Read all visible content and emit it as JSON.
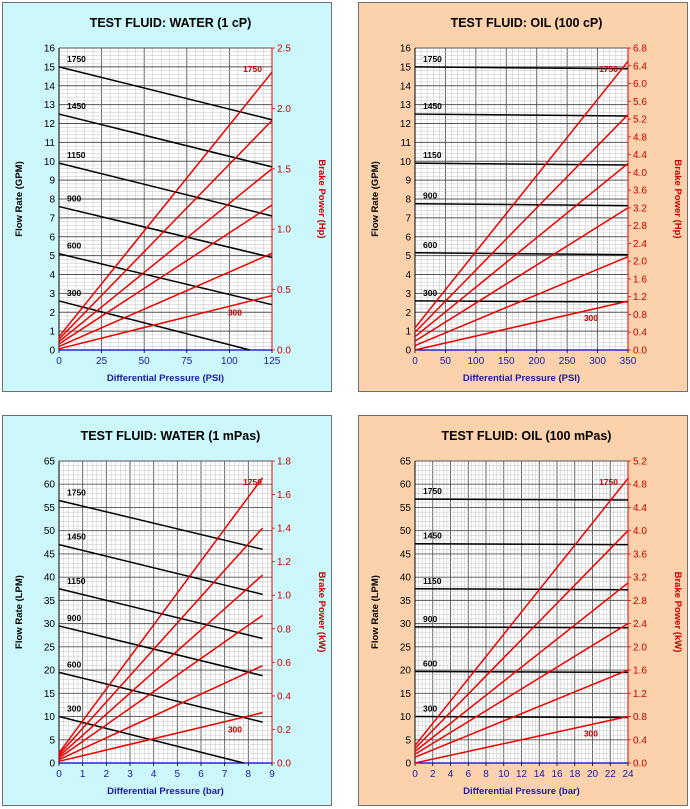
{
  "colors": {
    "water_bg": "#ccf7fb",
    "oil_bg": "#fbd2ac",
    "flow_line": "#000000",
    "power_line": "#ee0000",
    "x_axis_text": "#1a1aa8",
    "power_axis_text": "#cc0000",
    "grid_minor": "#c0c0c0",
    "grid_major": "#555555"
  },
  "chart_data": [
    {
      "type": "line",
      "title": "TEST FLUID:  WATER (1 cP)",
      "background": "water",
      "xlabel": "Differential Pressure (PSI)",
      "ylabel": "Flow Rate (GPM)",
      "y2label": "Brake Power (Hp)",
      "xlim": [
        0,
        125
      ],
      "ylim": [
        0,
        16
      ],
      "y2lim": [
        0,
        2.5
      ],
      "xticks": [
        "0",
        "25",
        "50",
        "75",
        "100",
        "125"
      ],
      "yticks": [
        "0",
        "1",
        "2",
        "3",
        "4",
        "5",
        "6",
        "7",
        "8",
        "9",
        "10",
        "11",
        "12",
        "13",
        "14",
        "15",
        "16"
      ],
      "y2ticks": [
        "0.0",
        "0.5",
        "1.0",
        "1.5",
        "2.0",
        "2.5"
      ],
      "grid": true,
      "rpm_labels": [
        "300",
        "600",
        "900",
        "1150",
        "1450",
        "1750"
      ],
      "power_rpm_labels": {
        "low": "300",
        "high": "1750"
      },
      "flow_series": [
        {
          "name": "300",
          "x": [
            0,
            112
          ],
          "y": [
            2.6,
            0
          ]
        },
        {
          "name": "600",
          "x": [
            0,
            125
          ],
          "y": [
            5.1,
            2.4
          ]
        },
        {
          "name": "900",
          "x": [
            0,
            125
          ],
          "y": [
            7.6,
            4.9
          ]
        },
        {
          "name": "1150",
          "x": [
            0,
            125
          ],
          "y": [
            9.9,
            7.1
          ]
        },
        {
          "name": "1450",
          "x": [
            0,
            125
          ],
          "y": [
            12.5,
            9.7
          ]
        },
        {
          "name": "1750",
          "x": [
            0,
            125
          ],
          "y": [
            15.0,
            12.2
          ]
        }
      ],
      "power_series": [
        {
          "name": "300",
          "x": [
            0,
            125
          ],
          "y": [
            0.01,
            0.45
          ]
        },
        {
          "name": "600",
          "x": [
            0,
            125
          ],
          "y": [
            0.03,
            0.8
          ]
        },
        {
          "name": "900",
          "x": [
            0,
            125
          ],
          "y": [
            0.05,
            1.2
          ]
        },
        {
          "name": "1150",
          "x": [
            0,
            125
          ],
          "y": [
            0.07,
            1.5
          ]
        },
        {
          "name": "1450",
          "x": [
            0,
            125
          ],
          "y": [
            0.09,
            1.9
          ]
        },
        {
          "name": "1750",
          "x": [
            0,
            125
          ],
          "y": [
            0.11,
            2.3
          ]
        }
      ]
    },
    {
      "type": "line",
      "title": "TEST FLUID:  OIL (100 cP)",
      "background": "oil",
      "xlabel": "Differential Pressure (PSI)",
      "ylabel": "Flow Rate (GPM)",
      "y2label": "Brake Power (Hp)",
      "xlim": [
        0,
        350
      ],
      "ylim": [
        0,
        16
      ],
      "y2lim": [
        0,
        6.8
      ],
      "xticks": [
        "0",
        "50",
        "100",
        "150",
        "200",
        "250",
        "300",
        "350"
      ],
      "yticks": [
        "0",
        "1",
        "2",
        "3",
        "4",
        "5",
        "6",
        "7",
        "8",
        "9",
        "10",
        "11",
        "12",
        "13",
        "14",
        "15",
        "16"
      ],
      "y2ticks": [
        "0.0",
        "0.4",
        "0.8",
        "1.2",
        "1.6",
        "2.0",
        "2.4",
        "2.8",
        "3.2",
        "3.6",
        "4.0",
        "4.4",
        "4.8",
        "5.2",
        "5.6",
        "6.0",
        "6.4",
        "6.8"
      ],
      "grid": true,
      "rpm_labels": [
        "300",
        "600",
        "900",
        "1150",
        "1450",
        "1750"
      ],
      "power_rpm_labels": {
        "low": "300",
        "high": "1750"
      },
      "flow_series": [
        {
          "name": "300",
          "x": [
            0,
            350
          ],
          "y": [
            2.6,
            2.55
          ]
        },
        {
          "name": "600",
          "x": [
            0,
            350
          ],
          "y": [
            5.15,
            5.05
          ]
        },
        {
          "name": "900",
          "x": [
            0,
            350
          ],
          "y": [
            7.75,
            7.65
          ]
        },
        {
          "name": "1150",
          "x": [
            0,
            350
          ],
          "y": [
            9.9,
            9.8
          ]
        },
        {
          "name": "1450",
          "x": [
            0,
            350
          ],
          "y": [
            12.5,
            12.4
          ]
        },
        {
          "name": "1750",
          "x": [
            0,
            350
          ],
          "y": [
            15.0,
            14.9
          ]
        }
      ],
      "power_series": [
        {
          "name": "300",
          "x": [
            0,
            350
          ],
          "y": [
            0.0,
            1.1
          ]
        },
        {
          "name": "600",
          "x": [
            0,
            350
          ],
          "y": [
            0.1,
            2.1
          ]
        },
        {
          "name": "900",
          "x": [
            0,
            350
          ],
          "y": [
            0.2,
            3.2
          ]
        },
        {
          "name": "1150",
          "x": [
            0,
            350
          ],
          "y": [
            0.3,
            4.2
          ]
        },
        {
          "name": "1450",
          "x": [
            0,
            350
          ],
          "y": [
            0.4,
            5.3
          ]
        },
        {
          "name": "1750",
          "x": [
            0,
            350
          ],
          "y": [
            0.5,
            6.5
          ]
        }
      ]
    },
    {
      "type": "line",
      "title": "TEST FLUID:  WATER (1 mPas)",
      "background": "water",
      "xlabel": "Differential Pressure (bar)",
      "ylabel": "Flow Rate (LPM)",
      "y2label": "Brake Power (kW)",
      "xlim": [
        0,
        9
      ],
      "ylim": [
        0,
        65
      ],
      "y2lim": [
        0,
        1.8
      ],
      "xticks": [
        "0",
        "1",
        "2",
        "3",
        "4",
        "5",
        "6",
        "7",
        "8",
        "9"
      ],
      "yticks": [
        "0",
        "5",
        "10",
        "15",
        "20",
        "25",
        "30",
        "35",
        "40",
        "45",
        "50",
        "55",
        "60",
        "65"
      ],
      "y2ticks": [
        "0.0",
        "0.2",
        "0.4",
        "0.6",
        "0.8",
        "1.0",
        "1.2",
        "1.4",
        "1.6",
        "1.8"
      ],
      "grid": true,
      "rpm_labels": [
        "300",
        "600",
        "900",
        "1150",
        "1450",
        "1750"
      ],
      "power_rpm_labels": {
        "low": "300",
        "high": "1750"
      },
      "flow_series": [
        {
          "name": "300",
          "x": [
            0,
            7.8
          ],
          "y": [
            10.0,
            0
          ]
        },
        {
          "name": "600",
          "x": [
            0,
            8.6
          ],
          "y": [
            19.5,
            8.8
          ]
        },
        {
          "name": "900",
          "x": [
            0,
            8.6
          ],
          "y": [
            29.5,
            18.8
          ]
        },
        {
          "name": "1150",
          "x": [
            0,
            8.6
          ],
          "y": [
            37.5,
            26.8
          ]
        },
        {
          "name": "1450",
          "x": [
            0,
            8.6
          ],
          "y": [
            47.0,
            36.3
          ]
        },
        {
          "name": "1750",
          "x": [
            0,
            8.6
          ],
          "y": [
            56.5,
            46.0
          ]
        }
      ],
      "power_series": [
        {
          "name": "300",
          "x": [
            0,
            8.6
          ],
          "y": [
            0.01,
            0.3
          ]
        },
        {
          "name": "600",
          "x": [
            0,
            8.6
          ],
          "y": [
            0.02,
            0.58
          ]
        },
        {
          "name": "900",
          "x": [
            0,
            8.6
          ],
          "y": [
            0.03,
            0.88
          ]
        },
        {
          "name": "1150",
          "x": [
            0,
            8.6
          ],
          "y": [
            0.04,
            1.12
          ]
        },
        {
          "name": "1450",
          "x": [
            0,
            8.6
          ],
          "y": [
            0.05,
            1.4
          ]
        },
        {
          "name": "1750",
          "x": [
            0,
            8.6
          ],
          "y": [
            0.06,
            1.7
          ]
        }
      ]
    },
    {
      "type": "line",
      "title": "TEST FLUID:  OIL (100 mPas)",
      "background": "oil",
      "xlabel": "Differential Pressure (bar)",
      "ylabel": "Flow Rate (LPM)",
      "y2label": "Brake Power (kW)",
      "xlim": [
        0,
        24
      ],
      "ylim": [
        0,
        65
      ],
      "y2lim": [
        0,
        5.2
      ],
      "xticks": [
        "0",
        "2",
        "4",
        "6",
        "8",
        "10",
        "12",
        "14",
        "16",
        "18",
        "20",
        "22",
        "24"
      ],
      "yticks": [
        "0",
        "5",
        "10",
        "15",
        "20",
        "25",
        "30",
        "35",
        "40",
        "45",
        "50",
        "55",
        "60",
        "65"
      ],
      "y2ticks": [
        "0.0",
        "0.4",
        "0.8",
        "1.2",
        "1.6",
        "2.0",
        "2.4",
        "2.8",
        "3.2",
        "3.6",
        "4.0",
        "4.4",
        "4.8",
        "5.2"
      ],
      "grid": true,
      "rpm_labels": [
        "300",
        "600",
        "900",
        "1150",
        "1450",
        "1750"
      ],
      "power_rpm_labels": {
        "low": "300",
        "high": "1750"
      },
      "flow_series": [
        {
          "name": "300",
          "x": [
            0,
            24
          ],
          "y": [
            10.0,
            9.8
          ]
        },
        {
          "name": "600",
          "x": [
            0,
            24
          ],
          "y": [
            19.7,
            19.5
          ]
        },
        {
          "name": "900",
          "x": [
            0,
            24
          ],
          "y": [
            29.3,
            29.1
          ]
        },
        {
          "name": "1150",
          "x": [
            0,
            24
          ],
          "y": [
            37.5,
            37.3
          ]
        },
        {
          "name": "1450",
          "x": [
            0,
            24
          ],
          "y": [
            47.2,
            47.0
          ]
        },
        {
          "name": "1750",
          "x": [
            0,
            24
          ],
          "y": [
            56.8,
            56.6
          ]
        }
      ],
      "power_series": [
        {
          "name": "300",
          "x": [
            0,
            24
          ],
          "y": [
            0.0,
            0.8
          ]
        },
        {
          "name": "600",
          "x": [
            0,
            24
          ],
          "y": [
            0.1,
            1.6
          ]
        },
        {
          "name": "900",
          "x": [
            0,
            24
          ],
          "y": [
            0.15,
            2.4
          ]
        },
        {
          "name": "1150",
          "x": [
            0,
            24
          ],
          "y": [
            0.2,
            3.1
          ]
        },
        {
          "name": "1450",
          "x": [
            0,
            24
          ],
          "y": [
            0.25,
            4.0
          ]
        },
        {
          "name": "1750",
          "x": [
            0,
            24
          ],
          "y": [
            0.3,
            4.9
          ]
        }
      ]
    }
  ]
}
